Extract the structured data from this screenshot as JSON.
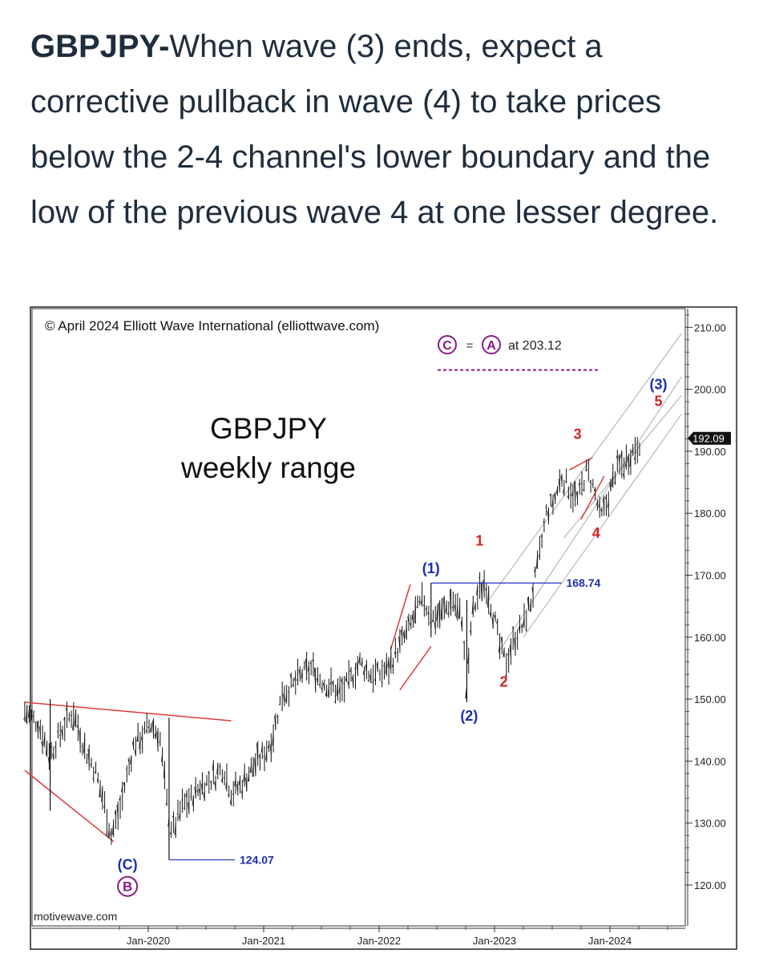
{
  "headline": {
    "ticker": "GBPJPY-",
    "text": "When wave (3) ends, expect a corrective pullback in wave (4) to take prices below the 2-4 channel's lower boundary and the low of the previous wave 4 at one lesser degree."
  },
  "chart_data": {
    "type": "line",
    "title": "GBPJPY",
    "subtitle": "weekly range",
    "copyright": "© April 2024 Elliott Wave International (elliottwave.com)",
    "source": "motivewave.com",
    "x_tick_labels": [
      "Jan-2020",
      "Jan-2021",
      "Jan-2022",
      "Jan-2023",
      "Jan-2024"
    ],
    "y_ticks": [
      120,
      130,
      140,
      150,
      160,
      170,
      180,
      190,
      200,
      210
    ],
    "y_tick_labels": [
      "120.00",
      "130.00",
      "140.00",
      "150.00",
      "160.00",
      "170.00",
      "180.00",
      "190.00",
      "200.00",
      "210.00"
    ],
    "ylim": [
      115,
      213
    ],
    "last_price": "192.09",
    "target_note": {
      "text": "= A at 203.12",
      "from": "C",
      "to": "A",
      "value": "at 203.12",
      "level": 203.12
    },
    "levels": [
      {
        "value": 168.74,
        "label": "168.74"
      },
      {
        "value": 124.07,
        "label": "124.07"
      }
    ],
    "wave_labels": [
      {
        "text": "(C)",
        "x": 2019.82,
        "y": 122.5,
        "color": "#1a2fb0"
      },
      {
        "text": "B",
        "x": 2019.82,
        "y": 119.0,
        "color": "#8a1a8a",
        "circled": true
      },
      {
        "text": "(1)",
        "x": 2022.45,
        "y": 170.3,
        "color": "#1a2fb0"
      },
      {
        "text": "(2)",
        "x": 2022.78,
        "y": 146.5,
        "color": "#1a2fb0"
      },
      {
        "text": "1",
        "x": 2022.87,
        "y": 174.8,
        "color": "#d62020"
      },
      {
        "text": "2",
        "x": 2023.08,
        "y": 152.0,
        "color": "#d62020"
      },
      {
        "text": "3",
        "x": 2023.72,
        "y": 192.0,
        "color": "#d62020"
      },
      {
        "text": "4",
        "x": 2023.88,
        "y": 176.0,
        "color": "#d62020"
      },
      {
        "text": "(3)",
        "x": 2024.42,
        "y": 200.0,
        "color": "#1a2fb0"
      },
      {
        "text": "5",
        "x": 2024.42,
        "y": 197.3,
        "color": "#d62020"
      }
    ],
    "series": [
      {
        "values": [
          [
            2018.93,
            148
          ],
          [
            2019.05,
            146
          ],
          [
            2019.15,
            141
          ],
          [
            2019.25,
            145
          ],
          [
            2019.35,
            148
          ],
          [
            2019.45,
            142
          ],
          [
            2019.55,
            138
          ],
          [
            2019.62,
            133
          ],
          [
            2019.68,
            128
          ],
          [
            2019.75,
            132
          ],
          [
            2019.82,
            138
          ],
          [
            2019.88,
            143
          ],
          [
            2019.95,
            144
          ],
          [
            2020.02,
            146
          ],
          [
            2020.1,
            144
          ],
          [
            2020.18,
            130
          ],
          [
            2020.22,
            129
          ],
          [
            2020.3,
            133
          ],
          [
            2020.38,
            134
          ],
          [
            2020.45,
            136
          ],
          [
            2020.55,
            137
          ],
          [
            2020.65,
            139
          ],
          [
            2020.72,
            135
          ],
          [
            2020.8,
            136
          ],
          [
            2020.9,
            139
          ],
          [
            2021.0,
            141
          ],
          [
            2021.08,
            144
          ],
          [
            2021.16,
            151
          ],
          [
            2021.25,
            152
          ],
          [
            2021.33,
            154
          ],
          [
            2021.42,
            155
          ],
          [
            2021.5,
            153
          ],
          [
            2021.58,
            152
          ],
          [
            2021.66,
            151
          ],
          [
            2021.75,
            153
          ],
          [
            2021.83,
            156
          ],
          [
            2021.92,
            154
          ],
          [
            2022.0,
            154
          ],
          [
            2022.08,
            155
          ],
          [
            2022.16,
            158
          ],
          [
            2022.25,
            161
          ],
          [
            2022.32,
            164
          ],
          [
            2022.38,
            166
          ],
          [
            2022.46,
            163
          ],
          [
            2022.55,
            164
          ],
          [
            2022.64,
            166
          ],
          [
            2022.72,
            163
          ],
          [
            2022.76,
            150
          ],
          [
            2022.8,
            163
          ],
          [
            2022.86,
            167
          ],
          [
            2022.92,
            169
          ],
          [
            2023.0,
            163
          ],
          [
            2023.05,
            158
          ],
          [
            2023.1,
            156
          ],
          [
            2023.18,
            160
          ],
          [
            2023.25,
            162
          ],
          [
            2023.32,
            166
          ],
          [
            2023.38,
            172
          ],
          [
            2023.45,
            180
          ],
          [
            2023.52,
            182
          ],
          [
            2023.58,
            186
          ],
          [
            2023.65,
            184
          ],
          [
            2023.72,
            182
          ],
          [
            2023.8,
            187
          ],
          [
            2023.86,
            184
          ],
          [
            2023.92,
            179
          ],
          [
            2023.98,
            182
          ],
          [
            2024.05,
            187
          ],
          [
            2024.12,
            188
          ],
          [
            2024.2,
            190
          ],
          [
            2024.27,
            192
          ]
        ]
      }
    ]
  }
}
